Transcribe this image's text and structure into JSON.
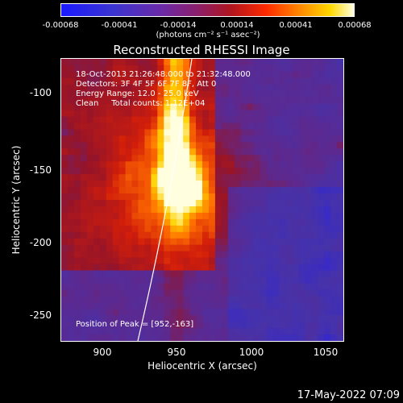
{
  "colorbar": {
    "ticks": [
      "-0.00068",
      "-0.00041",
      "-0.00014",
      "0.00014",
      "0.00041",
      "0.00068"
    ],
    "unit": "(photons cm⁻² s⁻¹ asec⁻²)"
  },
  "chart_data": {
    "type": "heatmap",
    "title": "Reconstructed RHESSI Image",
    "xlabel": "Heliocentric X (arcsec)",
    "ylabel": "Heliocentric Y (arcsec)",
    "xlim": [
      870,
      1063
    ],
    "ylim": [
      -268,
      -76
    ],
    "x_ticks": [
      "900",
      "950",
      "1000",
      "1050"
    ],
    "y_ticks": [
      "-100",
      "-150",
      "-200",
      "-250"
    ],
    "clim": [
      -0.00068,
      0.00068
    ],
    "peak": [
      952,
      -163
    ],
    "annotations": [
      "18-Oct-2013 21:26:48.000 to 21:32:48.000",
      "Detectors: 3F 4F 5F 6F 7F 8F, Att 0",
      "Energy Range: 12.0 - 25.0 keV",
      "Clean     Total counts: 1.12E+04"
    ],
    "peak_label": "Position of Peak = [952,-163]"
  },
  "timestamp": "17-May-2022 07:09",
  "colors": {
    "bg": "#000000",
    "low": "#1a1aff",
    "purple": "#5a30a0",
    "red": "#b0151e",
    "orange": "#ff8c00",
    "white": "#ffffe0"
  }
}
